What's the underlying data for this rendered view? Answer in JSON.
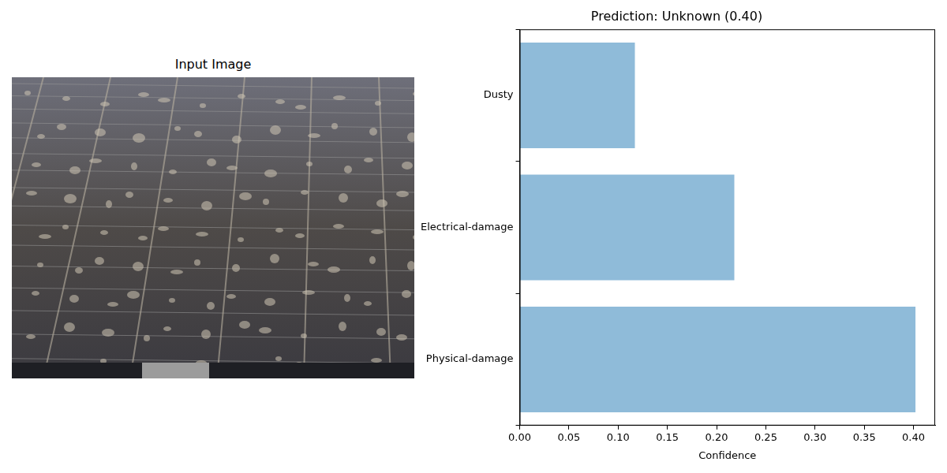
{
  "input_image": {
    "title": "Input Image"
  },
  "chart_data": {
    "type": "bar",
    "orientation": "horizontal",
    "title": "Prediction: Unknown (0.40)",
    "x_label": "Confidence",
    "categories": [
      "Dusty",
      "Electrical-damage",
      "Physical-damage"
    ],
    "values": [
      0.117,
      0.218,
      0.402
    ],
    "color": "#8fbbd9",
    "xlim": [
      0,
      0.422
    ],
    "xticks": [
      {
        "value": 0,
        "label": "0.00"
      },
      {
        "value": 0.05,
        "label": "0.05"
      },
      {
        "value": 0.1,
        "label": "0.10"
      },
      {
        "value": 0.15,
        "label": "0.15"
      },
      {
        "value": 0.2,
        "label": "0.20"
      },
      {
        "value": 0.25,
        "label": "0.25"
      },
      {
        "value": 0.3,
        "label": "0.30"
      },
      {
        "value": 0.35,
        "label": "0.35"
      },
      {
        "value": 0.4,
        "label": "0.40"
      }
    ],
    "grid": false
  }
}
